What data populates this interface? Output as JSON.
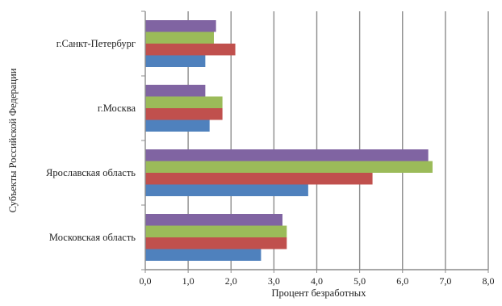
{
  "chart_data": {
    "type": "bar",
    "orientation": "horizontal",
    "categories": [
      "г.Санкт-Петербург",
      "г.Москва",
      "Ярославская область",
      "Московская область"
    ],
    "series": [
      {
        "color": "#8064a2",
        "values": [
          1.65,
          1.4,
          6.6,
          3.2
        ]
      },
      {
        "color": "#9bbb59",
        "values": [
          1.6,
          1.8,
          6.7,
          3.3
        ]
      },
      {
        "color": "#c0504d",
        "values": [
          2.1,
          1.8,
          5.3,
          3.3
        ]
      },
      {
        "color": "#4f81bd",
        "values": [
          1.4,
          1.5,
          3.8,
          2.7
        ]
      }
    ],
    "x_ticks": [
      "0,0",
      "1,0",
      "2,0",
      "3,0",
      "4,0",
      "5,0",
      "6,0",
      "7,0",
      "8,0"
    ],
    "xlim": [
      0,
      8
    ],
    "xlabel": "Процент безработных",
    "ylabel": "Субъекты Российской Федерации",
    "grid": "vertical",
    "legend": "none"
  }
}
